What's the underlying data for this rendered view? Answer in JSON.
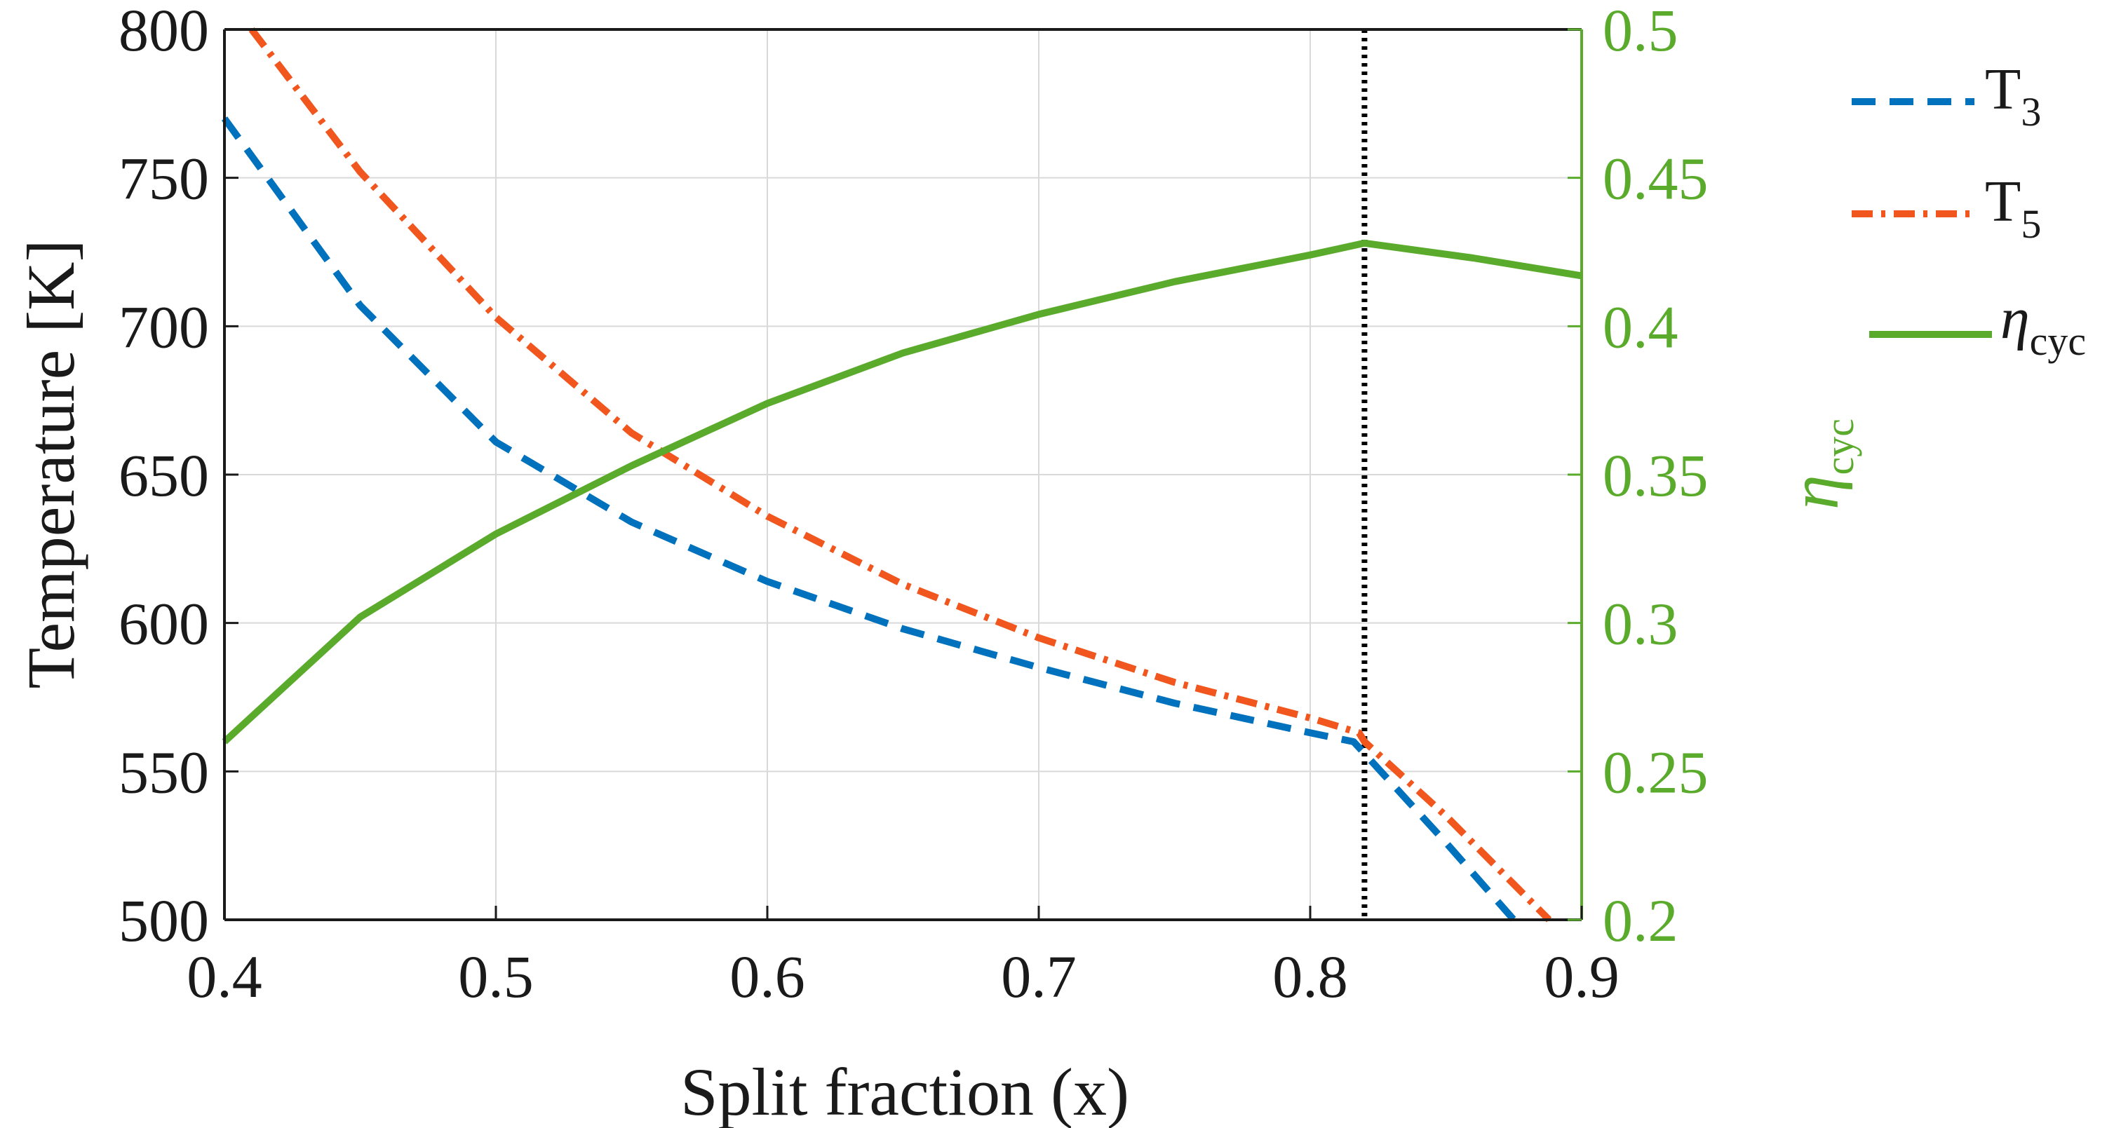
{
  "chart_data": {
    "type": "line",
    "xlabel": "Split fraction (x)",
    "ylabel_left": "Temperature [K]",
    "ylabel_right": {
      "base": "η",
      "sub": "cyc"
    },
    "xlim": [
      0.4,
      0.9
    ],
    "ylim_left": [
      500,
      800
    ],
    "ylim_right": [
      0.2,
      0.5
    ],
    "x_ticks": [
      "0.4",
      "0.5",
      "0.6",
      "0.7",
      "0.8",
      "0.9"
    ],
    "y_left_ticks": [
      "500",
      "550",
      "600",
      "650",
      "700",
      "750",
      "800"
    ],
    "y_right_ticks": [
      "0.2",
      "0.25",
      "0.3",
      "0.35",
      "0.4",
      "0.45",
      "0.5"
    ],
    "grid": true,
    "optimum_x": 0.82,
    "colors": {
      "T3": "#0072bd",
      "T5": "#f0561d",
      "eta": "#5aaa2b",
      "vline": "#000000",
      "grid": "#d9d9d9",
      "axis": "#1a1a1a"
    },
    "series": [
      {
        "name": "T3",
        "legend_base": "T",
        "legend_sub": "3",
        "axis": "left",
        "style": "dashed",
        "x": [
          0.4,
          0.45,
          0.5,
          0.55,
          0.6,
          0.65,
          0.7,
          0.75,
          0.8,
          0.816,
          0.82,
          0.85,
          0.875
        ],
        "y": [
          770,
          707,
          661,
          634,
          614,
          598,
          585,
          573,
          563,
          560,
          556,
          526,
          500
        ]
      },
      {
        "name": "T5",
        "legend_base": "T",
        "legend_sub": "5",
        "axis": "left",
        "style": "dashdot",
        "x": [
          0.41,
          0.45,
          0.5,
          0.55,
          0.6,
          0.65,
          0.7,
          0.75,
          0.8,
          0.818,
          0.82,
          0.85,
          0.888
        ],
        "y": [
          800,
          752,
          703,
          664,
          636,
          613,
          595,
          580,
          568,
          563,
          560,
          535,
          500
        ]
      },
      {
        "name": "η_cyc",
        "legend_base": "η",
        "legend_sub": "cyc",
        "axis": "right",
        "style": "solid",
        "x": [
          0.4,
          0.45,
          0.5,
          0.55,
          0.6,
          0.65,
          0.7,
          0.75,
          0.8,
          0.82,
          0.86,
          0.9
        ],
        "y": [
          0.26,
          0.302,
          0.33,
          0.353,
          0.374,
          0.391,
          0.404,
          0.415,
          0.424,
          0.428,
          0.423,
          0.417
        ]
      }
    ]
  }
}
